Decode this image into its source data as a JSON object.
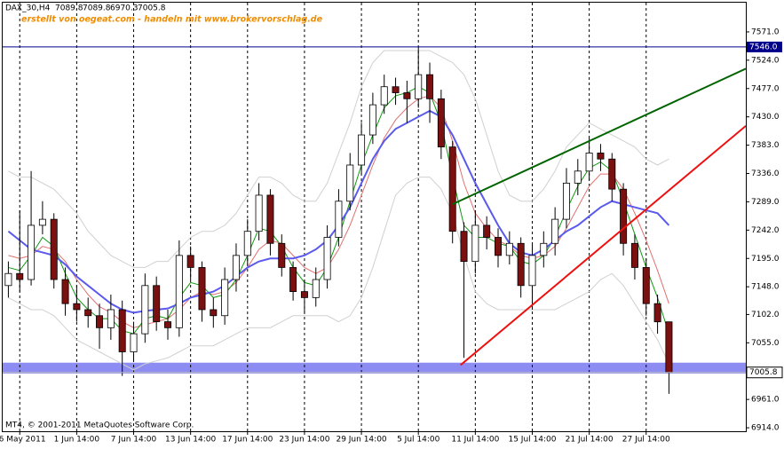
{
  "chart_data": {
    "type": "candlestick",
    "symbol": "DAX_30,H4",
    "watermark": "erstellt von oegeat.com - handeln mit www.brokervorschlag.de",
    "footer": "MT4, © 2001-2011 MetaQuotes Software Corp.",
    "categories": [
      null,
      "26 May 2011",
      null,
      null,
      null,
      null,
      "1 Jun 14:00",
      null,
      null,
      null,
      null,
      "7 Jun 14:00",
      null,
      null,
      null,
      null,
      "13 Jun 14:00",
      null,
      null,
      null,
      null,
      "17 Jun 14:00",
      null,
      null,
      null,
      null,
      "23 Jun 14:00",
      null,
      null,
      null,
      null,
      "29 Jun 14:00",
      null,
      null,
      null,
      null,
      "5 Jul 14:00",
      null,
      null,
      null,
      null,
      "11 Jul 14:00",
      null,
      null,
      null,
      null,
      "15 Jul 14:00",
      null,
      null,
      null,
      null,
      "21 Jul 14:00",
      null,
      null,
      null,
      null,
      "27 Jul 14:00",
      null,
      null
    ],
    "open": [
      7150,
      7170,
      7160,
      7250,
      7260,
      7160,
      7120,
      7110,
      7100,
      7080,
      7110,
      7040,
      7070,
      7150,
      7090,
      7080,
      7200,
      7180,
      7110,
      7100,
      7160,
      7200,
      7240,
      7300,
      7220,
      7180,
      7140,
      7130,
      7160,
      7230,
      7290,
      7350,
      7400,
      7450,
      7480,
      7470,
      7460,
      7500,
      7460,
      7380,
      7240,
      7190,
      7250,
      7230,
      7200,
      7220,
      7150,
      7200,
      7220,
      7260,
      7320,
      7340,
      7370,
      7360,
      7310,
      7220,
      7180,
      7120,
      7089.8
    ],
    "high": [
      7190,
      7275,
      7340,
      7290,
      7270,
      7180,
      7150,
      7130,
      7120,
      7135,
      7125,
      7090,
      7170,
      7165,
      7110,
      7225,
      7215,
      7190,
      7130,
      7180,
      7220,
      7260,
      7320,
      7310,
      7235,
      7190,
      7160,
      7180,
      7250,
      7310,
      7370,
      7420,
      7470,
      7500,
      7495,
      7490,
      7545,
      7520,
      7475,
      7390,
      7255,
      7275,
      7265,
      7245,
      7240,
      7230,
      7220,
      7240,
      7280,
      7345,
      7360,
      7395,
      7385,
      7370,
      7320,
      7235,
      7195,
      7135,
      7089.8
    ],
    "low": [
      7130,
      7140,
      7150,
      7235,
      7145,
      7100,
      7090,
      7080,
      7045,
      7060,
      7000,
      7025,
      7055,
      7075,
      7060,
      7065,
      7160,
      7090,
      7080,
      7085,
      7140,
      7185,
      7225,
      7200,
      7165,
      7125,
      7105,
      7115,
      7145,
      7215,
      7275,
      7335,
      7385,
      7435,
      7450,
      7420,
      7445,
      7420,
      7360,
      7220,
      7030,
      7170,
      7210,
      7180,
      7185,
      7130,
      7110,
      7180,
      7200,
      7245,
      7300,
      7325,
      7340,
      7290,
      7200,
      7160,
      7100,
      7070,
      6970.3
    ],
    "close": [
      7170,
      7160,
      7250,
      7260,
      7160,
      7120,
      7110,
      7100,
      7080,
      7110,
      7040,
      7070,
      7150,
      7090,
      7080,
      7200,
      7180,
      7110,
      7100,
      7160,
      7200,
      7240,
      7300,
      7220,
      7180,
      7140,
      7130,
      7160,
      7230,
      7290,
      7350,
      7400,
      7450,
      7480,
      7470,
      7460,
      7500,
      7460,
      7380,
      7240,
      7190,
      7250,
      7230,
      7200,
      7220,
      7150,
      7200,
      7220,
      7260,
      7320,
      7340,
      7370,
      7360,
      7310,
      7220,
      7180,
      7120,
      7089.8,
      7005.8
    ],
    "up_color": "#ffffff",
    "down_color": "#7a1010",
    "overlays": [
      {
        "color": "#d0d0d0",
        "values": [
          7340,
          7330,
          7330,
          7320,
          7310,
          7290,
          7270,
          7240,
          7220,
          7200,
          7190,
          7180,
          7180,
          7190,
          7190,
          7210,
          7230,
          7240,
          7240,
          7250,
          7270,
          7300,
          7330,
          7330,
          7320,
          7300,
          7290,
          7290,
          7320,
          7370,
          7420,
          7480,
          7520,
          7540,
          7540,
          7540,
          7540,
          7540,
          7530,
          7520,
          7500,
          7460,
          7400,
          7340,
          7300,
          7290,
          7290,
          7310,
          7340,
          7380,
          7400,
          7420,
          7410,
          7400,
          7390,
          7380,
          7360,
          7350,
          7360
        ]
      },
      {
        "color": "#d0d0d0",
        "values": [
          7130,
          7120,
          7110,
          7110,
          7100,
          7080,
          7060,
          7050,
          7040,
          7030,
          7020,
          7010,
          7020,
          7025,
          7030,
          7040,
          7050,
          7050,
          7050,
          7060,
          7070,
          7080,
          7080,
          7080,
          7090,
          7100,
          7100,
          7100,
          7100,
          7090,
          7100,
          7130,
          7180,
          7240,
          7300,
          7320,
          7330,
          7330,
          7310,
          7270,
          7200,
          7140,
          7120,
          7110,
          7110,
          7110,
          7110,
          7110,
          7110,
          7120,
          7130,
          7140,
          7160,
          7170,
          7150,
          7120,
          7090,
          7060,
          7020
        ]
      },
      {
        "color": "#e07070",
        "values": [
          7200,
          7195,
          7200,
          7215,
          7210,
          7190,
          7160,
          7135,
          7115,
          7105,
          7090,
          7080,
          7085,
          7090,
          7095,
          7110,
          7130,
          7140,
          7135,
          7140,
          7155,
          7180,
          7210,
          7225,
          7220,
          7200,
          7180,
          7170,
          7180,
          7210,
          7250,
          7300,
          7350,
          7395,
          7425,
          7445,
          7460,
          7465,
          7445,
          7390,
          7320,
          7270,
          7245,
          7225,
          7215,
          7200,
          7195,
          7200,
          7215,
          7245,
          7280,
          7315,
          7335,
          7335,
          7310,
          7270,
          7225,
          7175,
          7120
        ]
      },
      {
        "color": "#119911",
        "values": [
          7180,
          7175,
          7200,
          7230,
          7215,
          7170,
          7130,
          7110,
          7095,
          7095,
          7075,
          7070,
          7095,
          7100,
          7095,
          7130,
          7155,
          7150,
          7130,
          7135,
          7160,
          7200,
          7245,
          7240,
          7215,
          7180,
          7155,
          7150,
          7180,
          7230,
          7290,
          7350,
          7400,
          7445,
          7465,
          7470,
          7480,
          7470,
          7420,
          7330,
          7250,
          7230,
          7230,
          7220,
          7215,
          7190,
          7185,
          7200,
          7230,
          7275,
          7315,
          7345,
          7355,
          7340,
          7290,
          7235,
          7180,
          7130,
          7070
        ]
      },
      {
        "color": "#5a5aee",
        "values": [
          7240,
          7225,
          7210,
          7205,
          7200,
          7185,
          7165,
          7150,
          7135,
          7120,
          7110,
          7105,
          7108,
          7110,
          7112,
          7120,
          7130,
          7135,
          7140,
          7150,
          7165,
          7180,
          7190,
          7195,
          7195,
          7195,
          7200,
          7210,
          7225,
          7250,
          7280,
          7320,
          7360,
          7390,
          7410,
          7420,
          7430,
          7440,
          7430,
          7400,
          7360,
          7320,
          7285,
          7250,
          7220,
          7205,
          7200,
          7210,
          7225,
          7240,
          7250,
          7265,
          7280,
          7290,
          7285,
          7280,
          7275,
          7270,
          7250
        ]
      }
    ],
    "trendlines": [
      {
        "color": "#006400",
        "x": [
          39,
          64.75
        ],
        "y": [
          7285,
          7510
        ]
      },
      {
        "color": "#ee1111",
        "x": [
          39.7,
          64.75
        ],
        "y": [
          7018,
          7415
        ]
      }
    ],
    "hline": {
      "value": 7546,
      "label": "7546.0",
      "color": "#00008b"
    },
    "zone": {
      "range": [
        7004,
        7022
      ],
      "color": "#8c8cf2"
    },
    "ylim": [
      6908.2,
      7619.5
    ],
    "xlim": [
      -0.5,
      64.75
    ],
    "yticks": [
      {
        "value": 7571,
        "label": "7571.0"
      },
      {
        "value": 7524,
        "label": "7524.0"
      },
      {
        "value": 7477,
        "label": "7477.0"
      },
      {
        "value": 7430,
        "label": "7430.0"
      },
      {
        "value": 7383,
        "label": "7383.0"
      },
      {
        "value": 7336,
        "label": "7336.0"
      },
      {
        "value": 7289,
        "label": "7289.0"
      },
      {
        "value": 7242,
        "label": "7242.0"
      },
      {
        "value": 7195,
        "label": "7195.0"
      },
      {
        "value": 7148,
        "label": "7148.0"
      },
      {
        "value": 7102,
        "label": "7102.0"
      },
      {
        "value": 7055,
        "label": "7055.0"
      },
      {
        "value": 6961,
        "label": "6961.0"
      },
      {
        "value": 6914,
        "label": "6914.0"
      }
    ],
    "grid": true
  }
}
